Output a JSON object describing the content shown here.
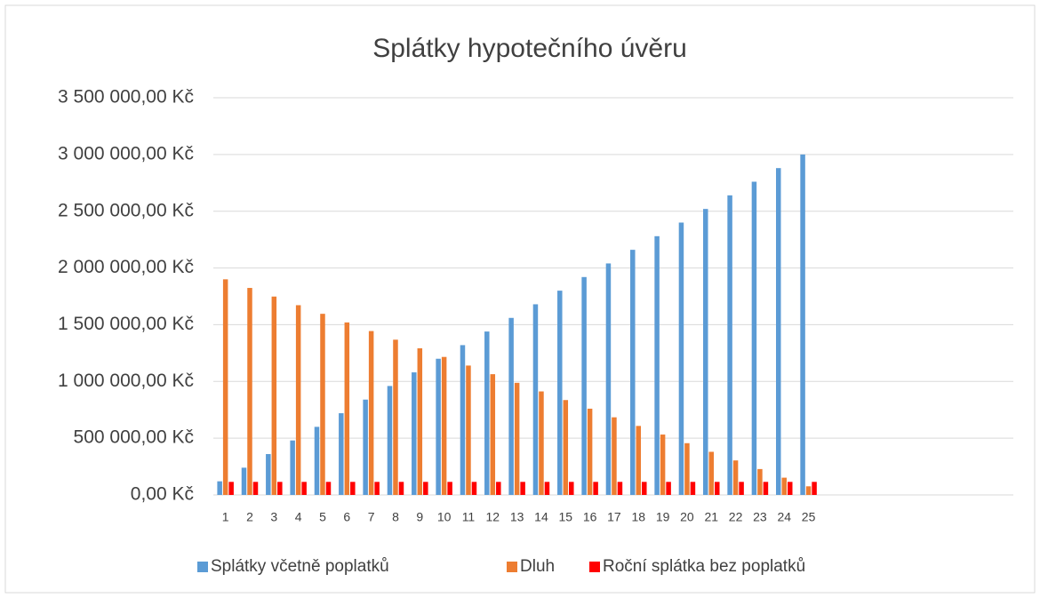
{
  "chart_data": {
    "type": "bar",
    "title": "Splátky hypotečního úvěru",
    "categories": [
      "1",
      "2",
      "3",
      "4",
      "5",
      "6",
      "7",
      "8",
      "9",
      "10",
      "11",
      "12",
      "13",
      "14",
      "15",
      "16",
      "17",
      "18",
      "19",
      "20",
      "21",
      "22",
      "23",
      "24",
      "25"
    ],
    "series": [
      {
        "name": "Splátky včetně poplatků",
        "color": "#5b9bd5",
        "values": [
          120000,
          240000,
          360000,
          480000,
          600000,
          720000,
          840000,
          960000,
          1080000,
          1200000,
          1320000,
          1440000,
          1560000,
          1680000,
          1800000,
          1920000,
          2040000,
          2160000,
          2280000,
          2400000,
          2520000,
          2640000,
          2760000,
          2880000,
          3000000
        ]
      },
      {
        "name": "Dluh",
        "color": "#ed7d31",
        "values": [
          1900000,
          1824000,
          1748000,
          1672000,
          1596000,
          1520000,
          1444000,
          1368000,
          1292000,
          1216000,
          1140000,
          1064000,
          988000,
          912000,
          836000,
          760000,
          684000,
          608000,
          532000,
          456000,
          380000,
          304000,
          228000,
          152000,
          76000
        ]
      },
      {
        "name": "Roční splátka bez poplatků",
        "color": "#ff0000",
        "values": [
          115000,
          115000,
          115000,
          115000,
          115000,
          115000,
          115000,
          115000,
          115000,
          115000,
          115000,
          115000,
          115000,
          115000,
          115000,
          115000,
          115000,
          115000,
          115000,
          115000,
          115000,
          115000,
          115000,
          115000,
          115000
        ]
      }
    ],
    "ylim": [
      0,
      3500000
    ],
    "yticks": [
      {
        "value": 0,
        "label": "0,00 Kč"
      },
      {
        "value": 500000,
        "label": "500 000,00 Kč"
      },
      {
        "value": 1000000,
        "label": "1 000 000,00 Kč"
      },
      {
        "value": 1500000,
        "label": "1 500 000,00 Kč"
      },
      {
        "value": 2000000,
        "label": "2 000 000,00 Kč"
      },
      {
        "value": 2500000,
        "label": "2 500 000,00 Kč"
      },
      {
        "value": 3000000,
        "label": "3 000 000,00 Kč"
      },
      {
        "value": 3500000,
        "label": "3 500 000,00 Kč"
      }
    ],
    "grid": true,
    "legend": "bottom"
  }
}
